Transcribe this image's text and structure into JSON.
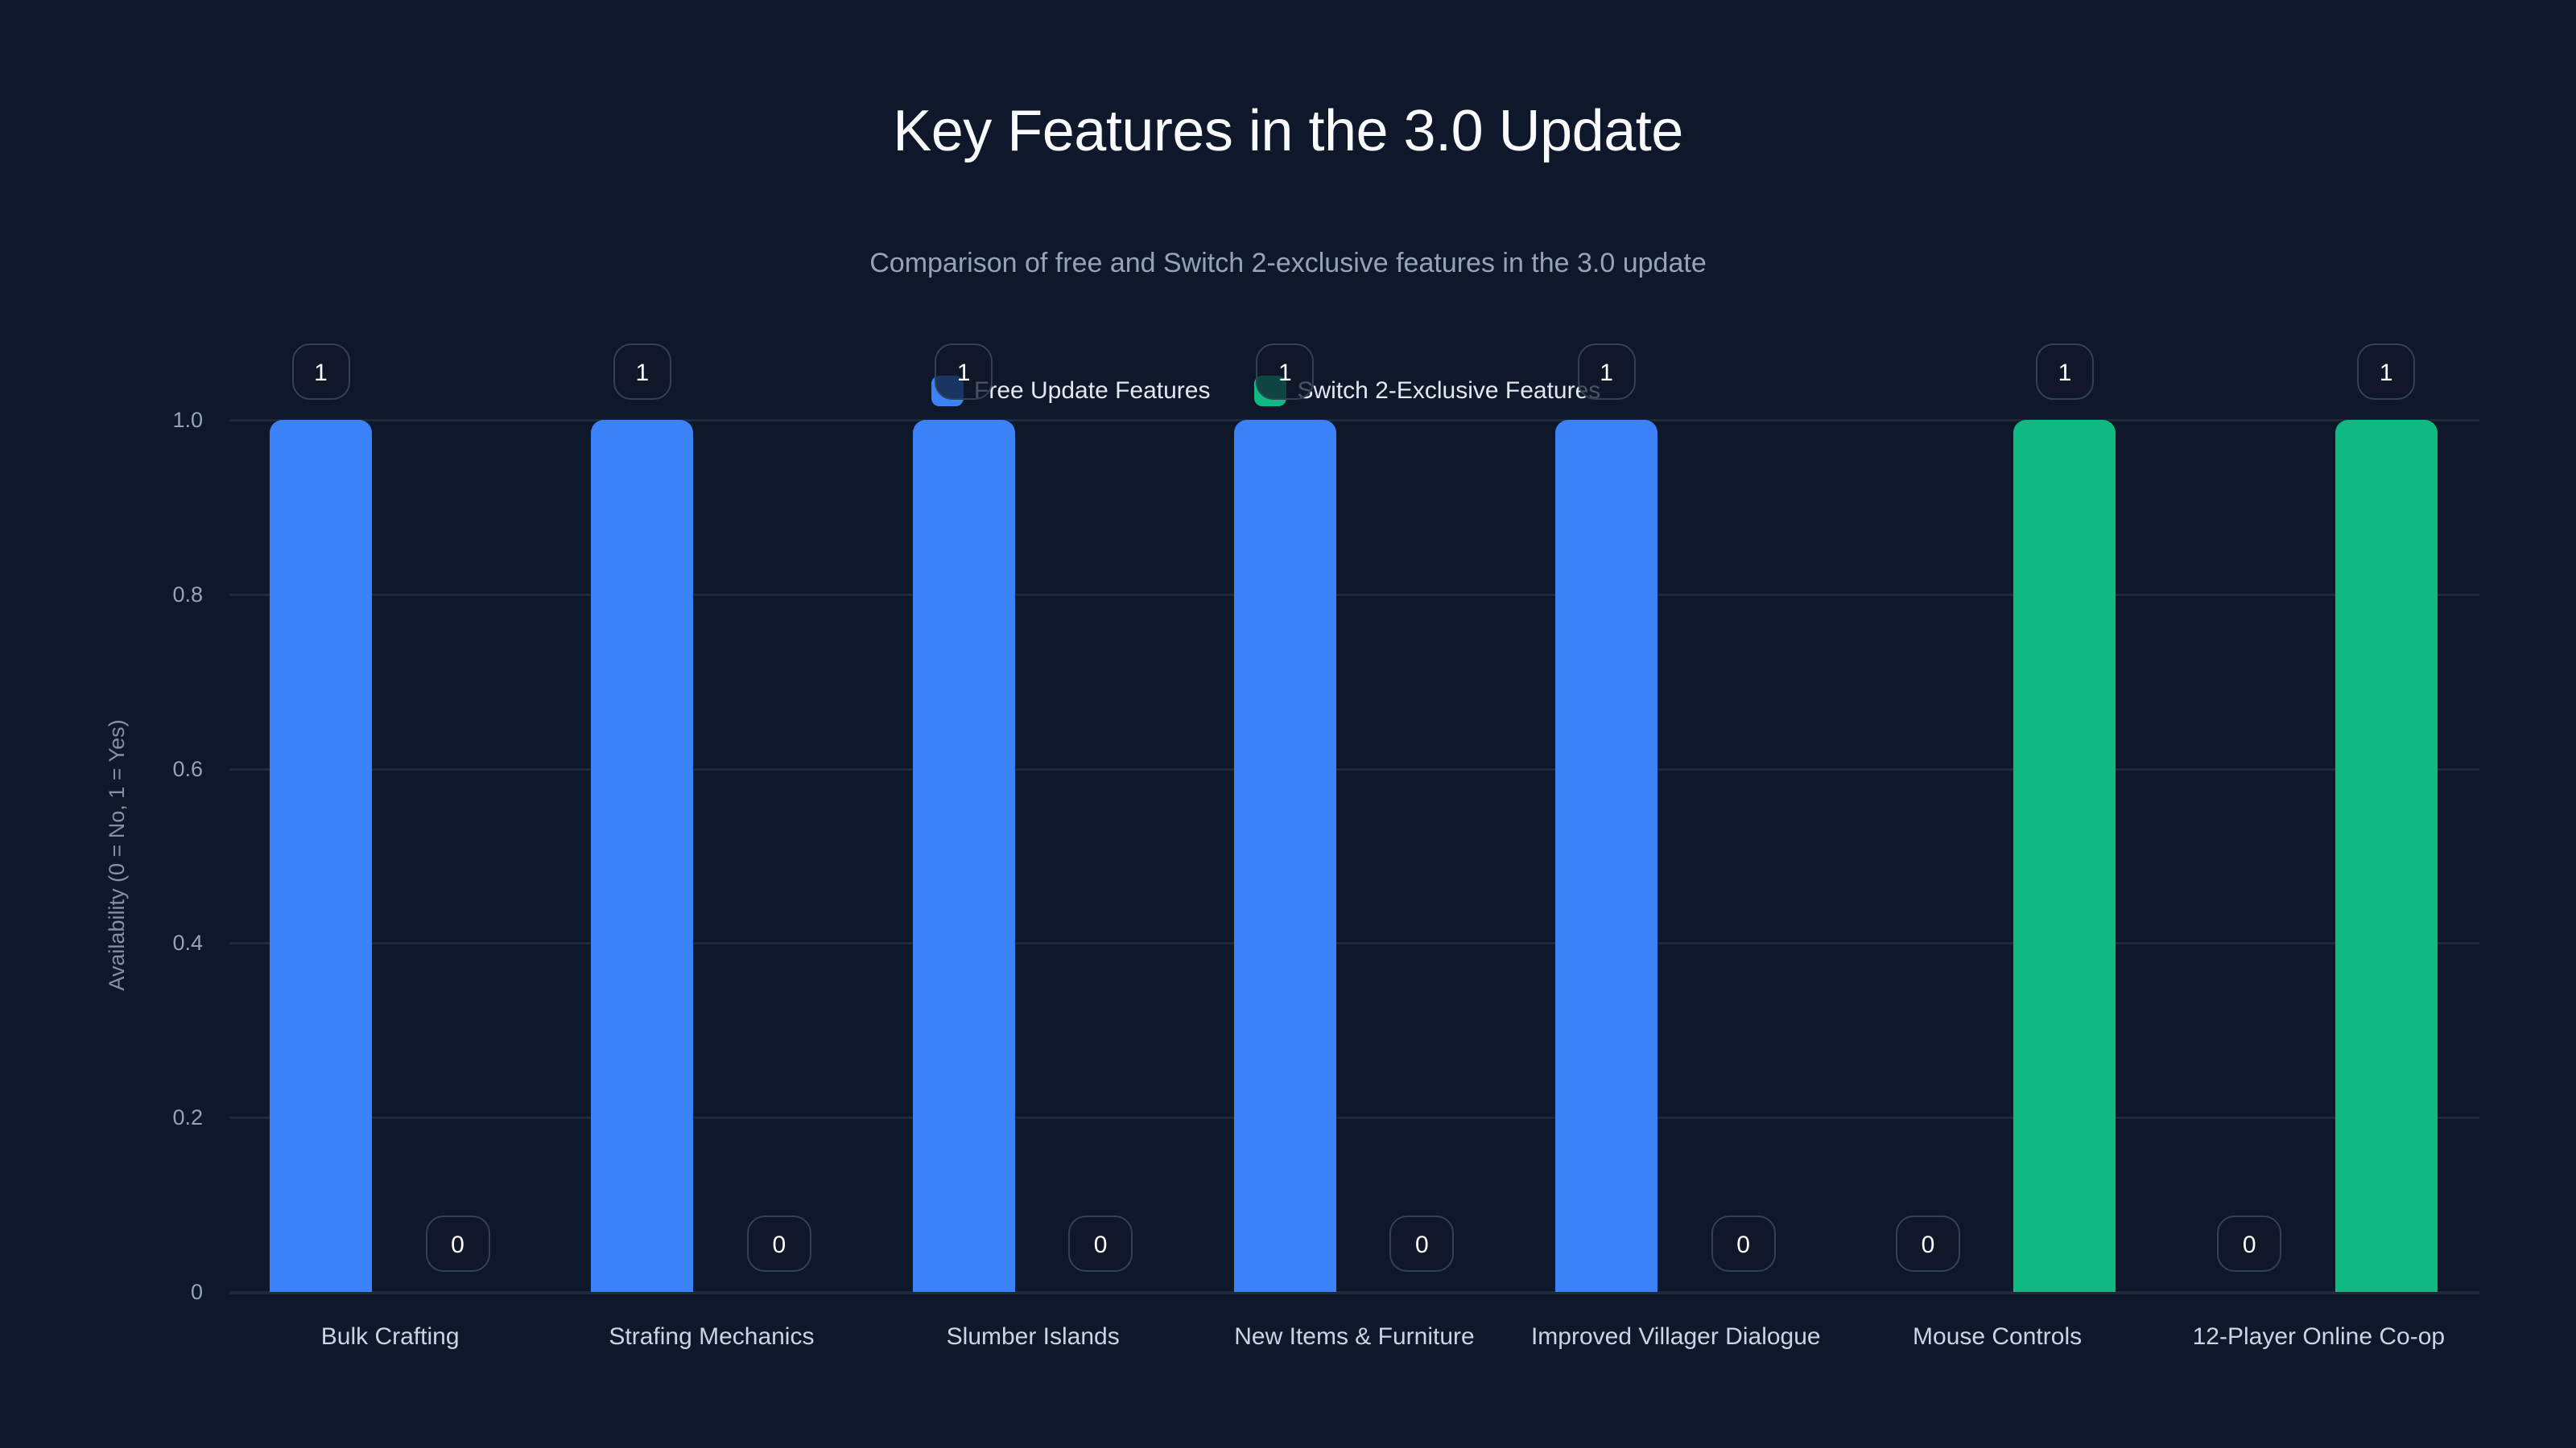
{
  "header": {
    "title": "Key Features in the 3.0 Update",
    "subtitle": "Comparison of free and Switch 2-exclusive features in the 3.0 update"
  },
  "legend": {
    "items": [
      {
        "label": "Free Update Features",
        "color": "#3b82f6"
      },
      {
        "label": "Switch 2-Exclusive Features",
        "color": "#10b981"
      }
    ]
  },
  "axes": {
    "ylabel": "Availability (0 = No, 1 = Yes)",
    "yticks": [
      "0",
      "0.2",
      "0.4",
      "0.6",
      "0.8",
      "1.0"
    ]
  },
  "chart_data": {
    "type": "bar",
    "title": "Key Features in the 3.0 Update",
    "subtitle": "Comparison of free and Switch 2-exclusive features in the 3.0 update",
    "xlabel": "",
    "ylabel": "Availability (0 = No, 1 = Yes)",
    "ylim": [
      0,
      1.0
    ],
    "yticks": [
      0,
      0.2,
      0.4,
      0.6,
      0.8,
      1.0
    ],
    "grid": true,
    "legend_position": "top-center",
    "categories": [
      "Bulk Crafting",
      "Strafing Mechanics",
      "Slumber Islands",
      "New Items & Furniture",
      "Improved Villager Dialogue",
      "Mouse Controls",
      "12-Player Online Co-op"
    ],
    "series": [
      {
        "name": "Free Update Features",
        "color": "#3b82f6",
        "values": [
          1,
          1,
          1,
          1,
          1,
          0,
          0
        ]
      },
      {
        "name": "Switch 2-Exclusive Features",
        "color": "#10b981",
        "values": [
          0,
          0,
          0,
          0,
          0,
          1,
          1
        ]
      }
    ],
    "data_labels": true
  }
}
